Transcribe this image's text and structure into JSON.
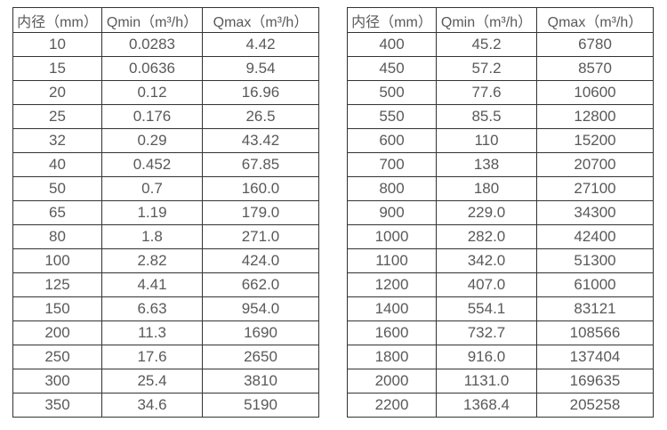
{
  "page": {
    "background_color": "#ffffff",
    "border_color": "#333333",
    "text_color": "#595959"
  },
  "tables": [
    {
      "name": "small-diameters",
      "columns": [
        "内径（mm）",
        "Qmin（m³/h）",
        "Qmax（m³/h）"
      ],
      "rows": [
        [
          "10",
          "0.0283",
          "4.42"
        ],
        [
          "15",
          "0.0636",
          "9.54"
        ],
        [
          "20",
          "0.12",
          "16.96"
        ],
        [
          "25",
          "0.176",
          "26.5"
        ],
        [
          "32",
          "0.29",
          "43.42"
        ],
        [
          "40",
          "0.452",
          "67.85"
        ],
        [
          "50",
          "0.7",
          "160.0"
        ],
        [
          "65",
          "1.19",
          "179.0"
        ],
        [
          "80",
          "1.8",
          "271.0"
        ],
        [
          "100",
          "2.82",
          "424.0"
        ],
        [
          "125",
          "4.41",
          "662.0"
        ],
        [
          "150",
          "6.63",
          "954.0"
        ],
        [
          "200",
          "11.3",
          "1690"
        ],
        [
          "250",
          "17.6",
          "2650"
        ],
        [
          "300",
          "25.4",
          "3810"
        ],
        [
          "350",
          "34.6",
          "5190"
        ]
      ]
    },
    {
      "name": "large-diameters",
      "columns": [
        "内径（mm）",
        "Qmin（m³/h）",
        "Qmax（m³/h）"
      ],
      "rows": [
        [
          "400",
          "45.2",
          "6780"
        ],
        [
          "450",
          "57.2",
          "8570"
        ],
        [
          "500",
          "77.6",
          "10600"
        ],
        [
          "550",
          "85.5",
          "12800"
        ],
        [
          "600",
          "110",
          "15200"
        ],
        [
          "700",
          "138",
          "20700"
        ],
        [
          "800",
          "180",
          "27100"
        ],
        [
          "900",
          "229.0",
          "34300"
        ],
        [
          "1000",
          "282.0",
          "42400"
        ],
        [
          "1100",
          "342.0",
          "51300"
        ],
        [
          "1200",
          "407.0",
          "61000"
        ],
        [
          "1400",
          "554.1",
          "83121"
        ],
        [
          "1600",
          "732.7",
          "108566"
        ],
        [
          "1800",
          "916.0",
          "137404"
        ],
        [
          "2000",
          "1131.0",
          "169635"
        ],
        [
          "2200",
          "1368.4",
          "205258"
        ]
      ]
    }
  ]
}
